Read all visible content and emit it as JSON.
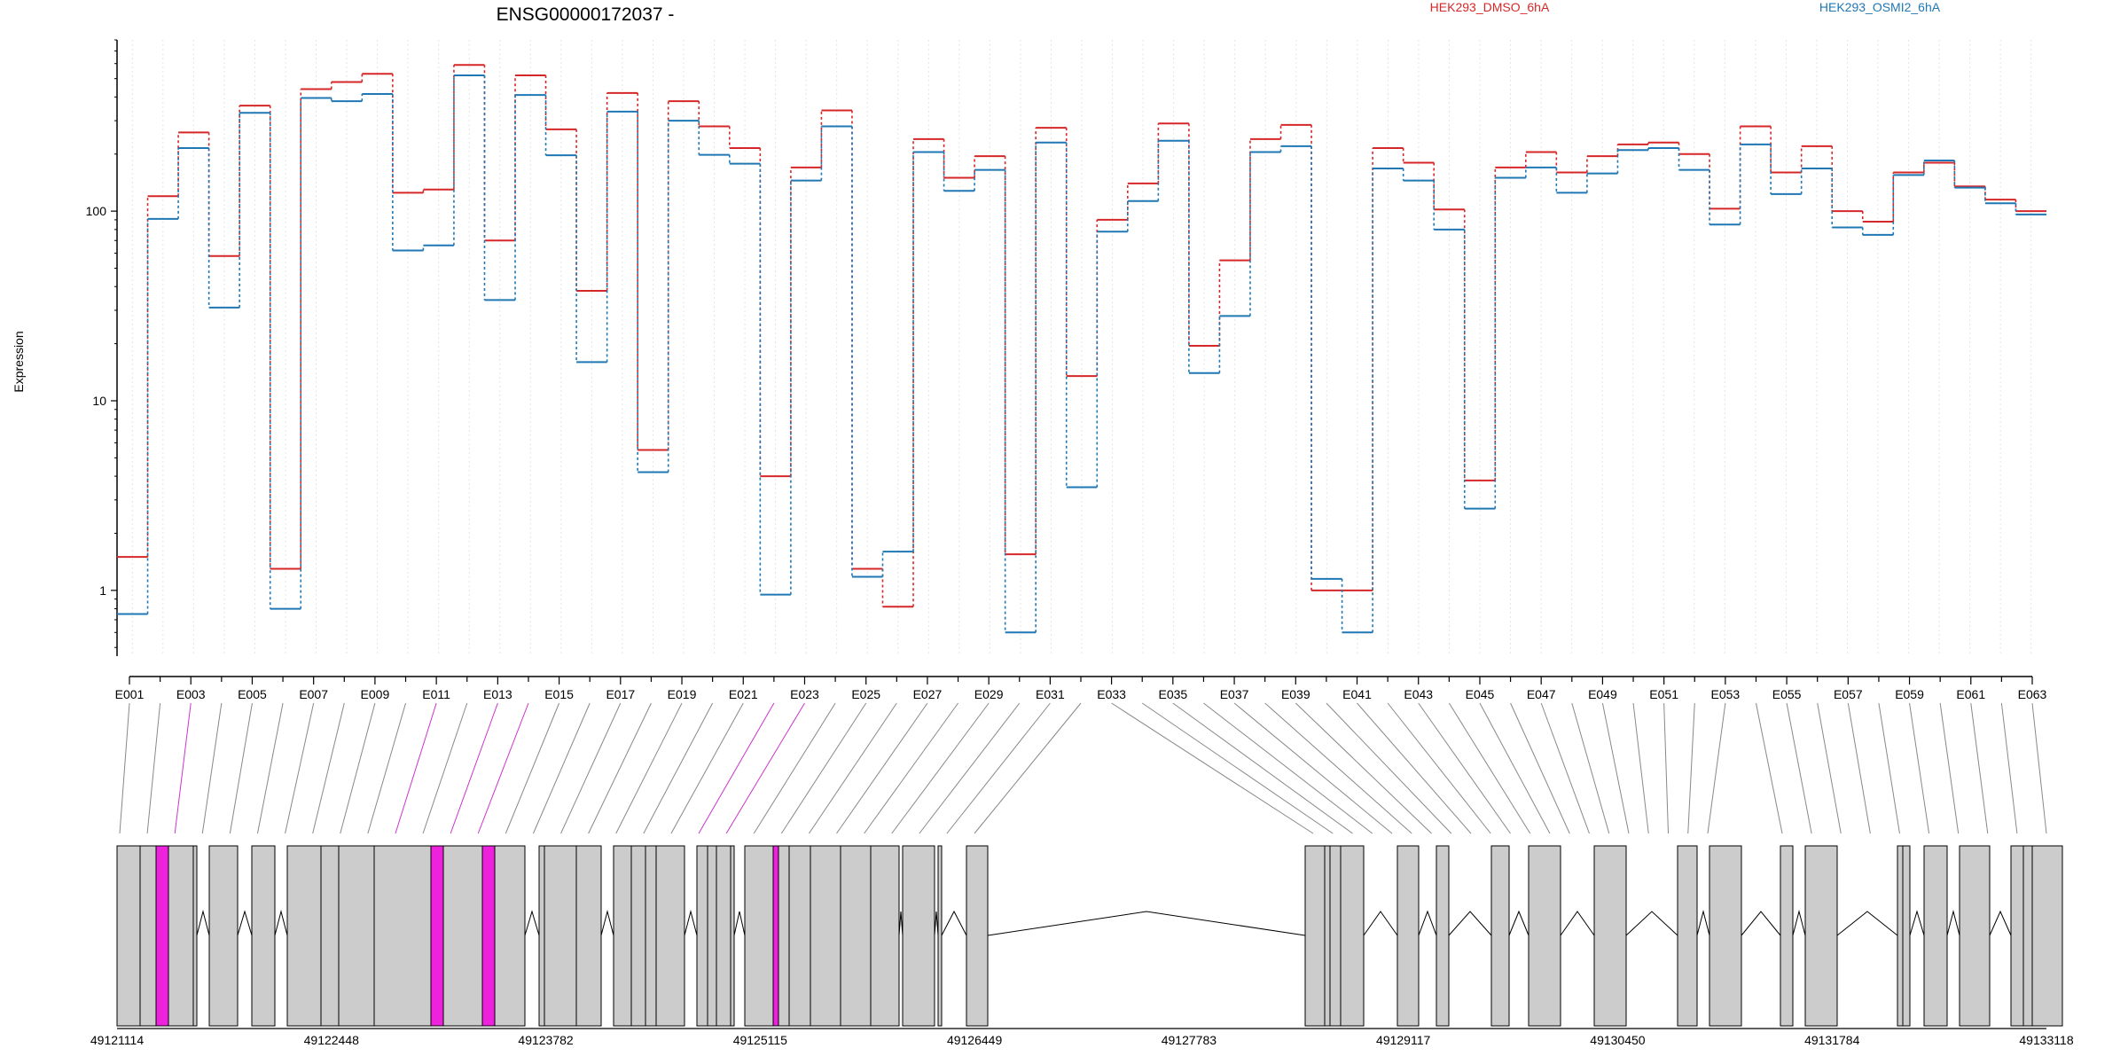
{
  "chart_data": {
    "type": "line",
    "title": "ENSG00000172037 -",
    "ylabel": "Expression",
    "xlabel": "",
    "y_scale": "log",
    "ylim": [
      0.45,
      800
    ],
    "y_ticks": [
      1,
      10,
      100
    ],
    "y_tick_labels": [
      "1",
      "10",
      "100"
    ],
    "grid": "vertical dotted lines at each exon",
    "legend": "top-right",
    "line_style": "step (dotted connectors)",
    "categories": [
      "E001",
      "E002",
      "E003",
      "E004",
      "E005",
      "E006",
      "E007",
      "E008",
      "E009",
      "E010",
      "E011",
      "E012",
      "E013",
      "E014",
      "E015",
      "E016",
      "E017",
      "E018",
      "E019",
      "E020",
      "E021",
      "E022",
      "E023",
      "E024",
      "E025",
      "E026",
      "E027",
      "E028",
      "E029",
      "E030",
      "E031",
      "E032",
      "E033",
      "E034",
      "E035",
      "E036",
      "E037",
      "E038",
      "E039",
      "E040",
      "E041",
      "E042",
      "E043",
      "E044",
      "E045",
      "E046",
      "E047",
      "E048",
      "E049",
      "E050",
      "E051",
      "E052",
      "E053",
      "E054",
      "E055",
      "E056",
      "E057",
      "E058",
      "E059",
      "E060",
      "E061",
      "E062",
      "E063"
    ],
    "x_tick_labels": [
      "E001",
      "E003",
      "E005",
      "E007",
      "E009",
      "E011",
      "E013",
      "E015",
      "E017",
      "E019",
      "E021",
      "E023",
      "E025",
      "E027",
      "E029",
      "E031",
      "E033",
      "E035",
      "E037",
      "E039",
      "E041",
      "E043",
      "E045",
      "E047",
      "E049",
      "E051",
      "E053",
      "E055",
      "E057",
      "E059",
      "E061",
      "E063"
    ],
    "series": [
      {
        "name": "HEK293_DMSO_6hA",
        "color": "#d62728",
        "values": [
          1.5,
          120,
          260,
          58,
          360,
          1.3,
          440,
          480,
          530,
          125,
          130,
          590,
          70,
          520,
          270,
          38,
          420,
          5.5,
          380,
          280,
          215,
          4,
          170,
          340,
          1.3,
          0.82,
          240,
          150,
          195,
          1.55,
          275,
          13.5,
          90,
          140,
          290,
          19.5,
          55,
          240,
          285,
          1.0,
          1.0,
          215,
          180,
          102,
          3.8,
          170,
          205,
          160,
          195,
          225,
          230,
          200,
          103,
          280,
          160,
          220,
          100,
          88,
          160,
          180,
          135,
          115,
          100
        ]
      },
      {
        "name": "HEK293_OSMI2_6hA",
        "color": "#1f77b4",
        "values": [
          0.75,
          91,
          215,
          31,
          330,
          0.8,
          395,
          380,
          415,
          62,
          66,
          520,
          34,
          410,
          197,
          16,
          335,
          4.2,
          300,
          198,
          178,
          0.95,
          145,
          280,
          1.18,
          1.6,
          205,
          128,
          165,
          0.6,
          230,
          3.5,
          78,
          113,
          235,
          14,
          28,
          205,
          220,
          1.15,
          0.6,
          168,
          145,
          80,
          2.7,
          150,
          170,
          125,
          158,
          210,
          215,
          165,
          85,
          225,
          123,
          168,
          82,
          75,
          155,
          185,
          133,
          110,
          96
        ]
      }
    ]
  },
  "gene_model": {
    "coordinate_labels": [
      "49121114",
      "49122448",
      "49123782",
      "49125115",
      "49126449",
      "49127783",
      "49129117",
      "49130450",
      "49131784",
      "49133118"
    ],
    "exon_fill": "#cccccc",
    "highlight_fill": "#ee22dd"
  }
}
